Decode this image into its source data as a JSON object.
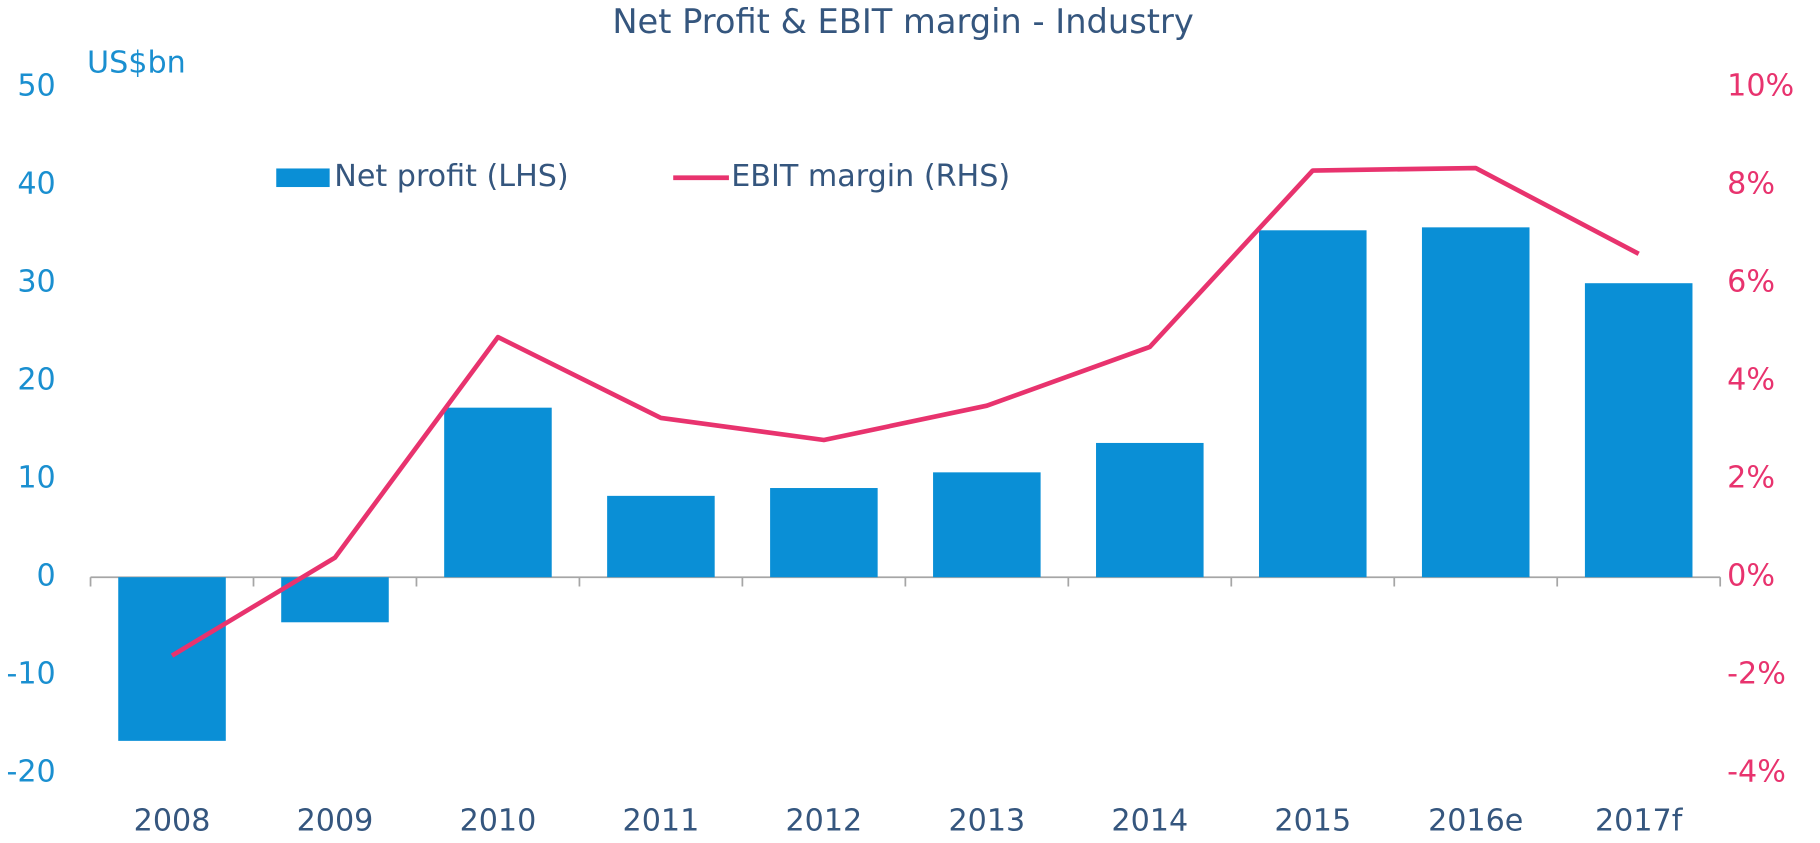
{
  "chart_data": {
    "type": "bar_line",
    "title": "Net Profit & EBIT margin - Industry",
    "y_label": "US$bn",
    "categories": [
      "2008",
      "2009",
      "2010",
      "2011",
      "2012",
      "2013",
      "2014",
      "2015",
      "2016e",
      "2017f"
    ],
    "series": [
      {
        "name": "Net profit (LHS)",
        "type": "bar",
        "color": "#0a8fd6",
        "axis": "y",
        "values": [
          -16.7,
          -4.6,
          17.3,
          8.3,
          9.1,
          10.7,
          13.7,
          35.4,
          35.7,
          30.0
        ]
      },
      {
        "name": "EBIT margin (RHS)",
        "type": "line",
        "color": "#e8336e",
        "axis": "y2",
        "values": [
          -1.6,
          0.4,
          4.9,
          3.25,
          2.8,
          3.5,
          4.7,
          8.3,
          8.35,
          6.6
        ]
      }
    ],
    "ylim": [
      -20,
      50
    ],
    "yticks": [
      -20,
      -10,
      0,
      10,
      20,
      30,
      40,
      50
    ],
    "y2lim": [
      -4,
      10
    ],
    "y2ticks": [
      {
        "value": -4,
        "label": "-4%"
      },
      {
        "value": -2,
        "label": "-2%"
      },
      {
        "value": 0,
        "label": "0%"
      },
      {
        "value": 2,
        "label": "2%"
      },
      {
        "value": 4,
        "label": "4%"
      },
      {
        "value": 6,
        "label": "6%"
      },
      {
        "value": 8,
        "label": "8%"
      },
      {
        "value": 10,
        "label": "10%"
      }
    ]
  }
}
